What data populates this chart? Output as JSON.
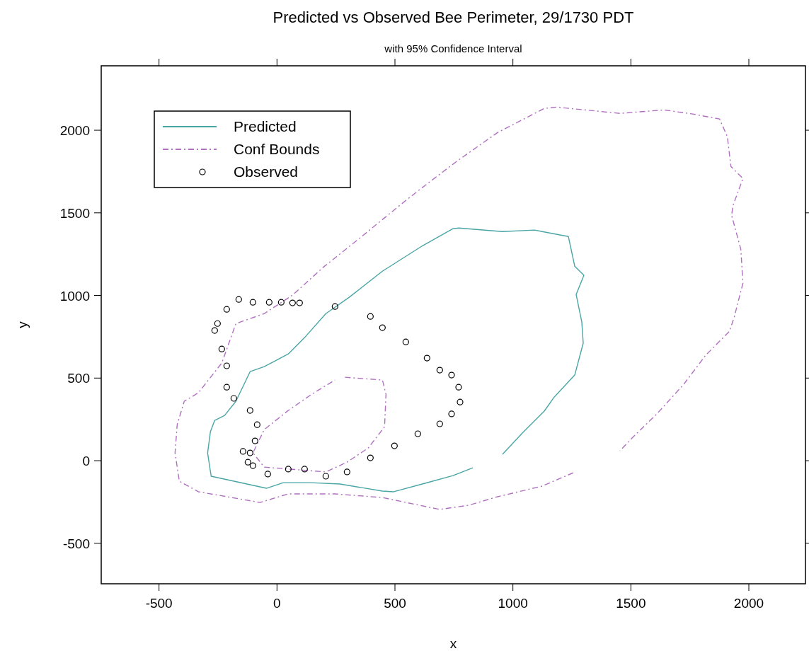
{
  "chart_data": {
    "type": "line",
    "title": "Predicted vs Observed Bee Perimeter, 29/1730 PDT",
    "subtitle": "with 95% Confidence Interval",
    "xlabel": "x",
    "ylabel": "y",
    "xlim": [
      -745,
      2240
    ],
    "ylim": [
      -745,
      2390
    ],
    "xticks": [
      -500,
      0,
      500,
      1000,
      1500,
      2000
    ],
    "yticks": [
      -500,
      0,
      500,
      1000,
      1500,
      2000
    ],
    "grid": false,
    "legend": "top left",
    "series": [
      {
        "name": "Predicted",
        "color": "#4aa5a5",
        "line_style": "solid",
        "x": [
          830,
          746,
          627,
          495,
          447,
          267,
          141,
          27,
          -45,
          -279,
          -294,
          -282,
          -264,
          -222,
          -174,
          -114,
          -54,
          48,
          117,
          207,
          306,
          447,
          617,
          746,
          770,
          956,
          1091,
          1235,
          1262,
          1301,
          1268,
          1292,
          1298,
          1262,
          1175,
          1133,
          1040,
          956
        ],
        "values": [
          -43,
          -90,
          -137,
          -188,
          -184,
          -141,
          -133,
          -133,
          -167,
          -94,
          47,
          176,
          244,
          274,
          360,
          539,
          569,
          646,
          745,
          890,
          989,
          1147,
          1301,
          1404,
          1408,
          1387,
          1396,
          1357,
          1177,
          1122,
          1006,
          839,
          711,
          518,
          385,
          300,
          167,
          39
        ]
      },
      {
        "name": "Conf Bounds",
        "color": "#b070c0",
        "line_style": "dashed",
        "x": [
          1256,
          1124,
          935,
          812,
          689,
          447,
          246,
          48,
          -72,
          -192,
          -333,
          -414,
          -432,
          -423,
          -393,
          -333,
          -234,
          -174,
          -54,
          66,
          198,
          348,
          546,
          627,
          761,
          935,
          1133,
          1184,
          1454,
          1640,
          1763,
          1876,
          1909,
          1924,
          1975,
          1933,
          1927,
          1966,
          1975,
          1948,
          1939,
          1918,
          1817,
          1724,
          1610,
          1505,
          1454
        ],
        "values": [
          -73,
          -154,
          -218,
          -270,
          -295,
          -223,
          -201,
          -201,
          -253,
          -223,
          -188,
          -124,
          47,
          218,
          360,
          411,
          591,
          830,
          890,
          1002,
          1173,
          1344,
          1575,
          1665,
          1811,
          1986,
          2132,
          2140,
          2102,
          2123,
          2098,
          2068,
          1961,
          1781,
          1708,
          1545,
          1485,
          1280,
          1074,
          925,
          873,
          783,
          638,
          462,
          283,
          137,
          60
        ]
      },
      {
        "color": "#b071c1",
        "line_style": "dashed",
        "x": [
          288,
          447,
          462,
          456,
          387,
          297,
          207,
          -54,
          -102,
          -54,
          48,
          147,
          246
        ],
        "values": [
          505,
          488,
          402,
          205,
          77,
          -9,
          -68,
          -39,
          47,
          188,
          304,
          402,
          488
        ]
      },
      {
        "name": "Observed",
        "type": "scatter",
        "color": "#000000",
        "marker": "circle",
        "x": [
          -39,
          48,
          117,
          207,
          297,
          396,
          498,
          597,
          690,
          740,
          776,
          770,
          740,
          690,
          636,
          546,
          447,
          396,
          246,
          96,
          66,
          18,
          -33,
          -102,
          -162,
          -213,
          -252,
          -264,
          -234,
          -213,
          -213,
          -183,
          -114,
          -84,
          -93,
          -114,
          -123,
          -102,
          -144
        ],
        "values": [
          -81,
          -51,
          -51,
          -94,
          -68,
          17,
          90,
          163,
          223,
          283,
          355,
          445,
          518,
          548,
          621,
          719,
          805,
          873,
          933,
          955,
          955,
          959,
          959,
          959,
          976,
          916,
          830,
          788,
          676,
          574,
          445,
          377,
          304,
          218,
          120,
          47,
          -9,
          -30,
          56
        ]
      }
    ]
  }
}
